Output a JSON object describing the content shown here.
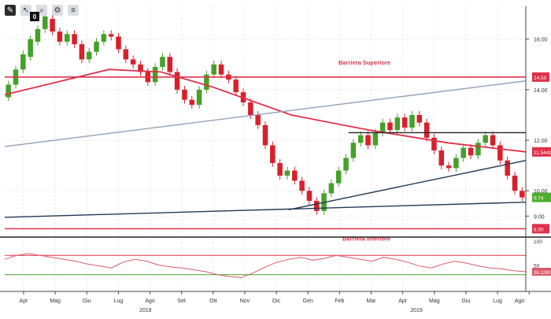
{
  "toolbar": {
    "icons": [
      "pencil-icon",
      "cursor-icon",
      "zoom-icon",
      "settings-icon",
      "list-icon"
    ],
    "badge": "0"
  },
  "chart_data": {
    "type": "candlestick",
    "title": "",
    "xlabel": "",
    "ylabel": "",
    "y_range": [
      8.2,
      17.3
    ],
    "y_ticks": [
      9,
      10,
      12,
      14,
      16
    ],
    "y_tick_labels": [
      "9.00",
      "10.00",
      "12.00",
      "14.00",
      "16.00"
    ],
    "x_month_labels": [
      "Apr",
      "Mag",
      "Giu",
      "Lug",
      "Ago",
      "Set",
      "Ott",
      "Nov",
      "Dic",
      "Gen",
      "Feb",
      "Mar",
      "Apr",
      "Mag",
      "Giu",
      "Lug",
      "Ago"
    ],
    "x_year_labels": [
      "2018",
      "2019"
    ],
    "grid": true,
    "candles": [
      [
        13.7,
        14.2
      ],
      [
        14.2,
        14.8
      ],
      [
        14.8,
        15.4
      ],
      [
        15.3,
        16.0
      ],
      [
        15.9,
        16.4
      ],
      [
        16.4,
        16.9
      ],
      [
        16.8,
        16.3
      ],
      [
        16.3,
        15.9
      ],
      [
        15.9,
        16.2
      ],
      [
        16.2,
        15.8
      ],
      [
        15.8,
        15.2
      ],
      [
        15.2,
        15.5
      ],
      [
        15.5,
        15.9
      ],
      [
        15.9,
        16.2
      ],
      [
        16.2,
        16.1
      ],
      [
        16.1,
        15.6
      ],
      [
        15.6,
        15.2
      ],
      [
        15.2,
        15.0
      ],
      [
        15.0,
        14.7
      ],
      [
        14.7,
        14.3
      ],
      [
        14.3,
        14.9
      ],
      [
        14.9,
        15.3
      ],
      [
        15.3,
        14.7
      ],
      [
        14.7,
        14.0
      ],
      [
        14.0,
        13.6
      ],
      [
        13.6,
        13.4
      ],
      [
        13.4,
        14.0
      ],
      [
        14.0,
        14.6
      ],
      [
        14.6,
        15.0
      ],
      [
        15.0,
        14.6
      ],
      [
        14.6,
        14.4
      ],
      [
        14.4,
        13.9
      ],
      [
        13.9,
        13.5
      ],
      [
        13.5,
        13.0
      ],
      [
        13.0,
        12.6
      ],
      [
        12.6,
        11.8
      ],
      [
        11.8,
        11.1
      ],
      [
        11.1,
        10.6
      ],
      [
        10.6,
        10.8
      ],
      [
        10.8,
        10.4
      ],
      [
        10.4,
        10.0
      ],
      [
        10.0,
        9.6
      ],
      [
        9.6,
        9.2
      ],
      [
        9.2,
        9.9
      ],
      [
        9.9,
        10.3
      ],
      [
        10.3,
        10.8
      ],
      [
        10.8,
        11.3
      ],
      [
        11.3,
        11.9
      ],
      [
        11.9,
        12.2
      ],
      [
        12.2,
        11.8
      ],
      [
        11.8,
        12.3
      ],
      [
        12.3,
        12.7
      ],
      [
        12.7,
        12.4
      ],
      [
        12.4,
        12.9
      ],
      [
        12.9,
        12.5
      ],
      [
        12.5,
        13.0
      ],
      [
        13.0,
        12.7
      ],
      [
        12.7,
        12.1
      ],
      [
        12.1,
        11.6
      ],
      [
        11.6,
        11.0
      ],
      [
        11.0,
        10.9
      ],
      [
        10.9,
        11.3
      ],
      [
        11.3,
        11.7
      ],
      [
        11.7,
        11.4
      ],
      [
        11.4,
        11.9
      ],
      [
        11.9,
        12.2
      ],
      [
        12.2,
        11.8
      ],
      [
        11.8,
        11.2
      ],
      [
        11.2,
        10.6
      ],
      [
        10.6,
        10.0
      ],
      [
        10.0,
        9.74
      ]
    ],
    "series": [
      {
        "kind": "moving_average",
        "x": [
          0,
          0.1,
          0.2,
          0.3,
          0.4,
          0.55,
          0.7,
          0.85,
          1.0
        ],
        "y": [
          13.8,
          14.3,
          14.8,
          14.7,
          14.1,
          13.0,
          12.4,
          11.9,
          11.54
        ],
        "color": "#e0304a"
      },
      {
        "kind": "trendline",
        "x": [
          0,
          1.0
        ],
        "y": [
          11.75,
          14.35
        ],
        "color": "#8fa2b8"
      },
      {
        "kind": "trendline",
        "x": [
          0,
          1.0
        ],
        "y": [
          8.95,
          9.55
        ],
        "color": "#233a56"
      },
      {
        "kind": "trendline",
        "x": [
          0.545,
          1.0
        ],
        "y": [
          9.25,
          11.2
        ],
        "color": "#233a56"
      },
      {
        "kind": "resistance",
        "x": [
          0.66,
          1.0
        ],
        "y": [
          12.3,
          12.3
        ],
        "color": "#222222"
      }
    ],
    "levels": [
      {
        "name": "Barriera Superiore",
        "value": 14.5,
        "label": "14.50",
        "color": "#e0304a"
      },
      {
        "name": "Barriera Inferiore",
        "value": 8.5,
        "label": "8.50",
        "color": "#e0304a"
      }
    ],
    "price_labels": [
      {
        "value": 11.54,
        "label": "11.5449",
        "color": "#e0304a"
      },
      {
        "value": 9.74,
        "label": "9.74",
        "color": "#4cae2a"
      }
    ],
    "oscillator": {
      "type": "rsi",
      "range": [
        0,
        100
      ],
      "tick_labels": [
        "100",
        "50"
      ],
      "upper": 70,
      "lower": 30,
      "last_label": "36.1280",
      "values": [
        62,
        70,
        74,
        70,
        66,
        62,
        58,
        52,
        48,
        44,
        56,
        62,
        58,
        50,
        46,
        44,
        40,
        36,
        30,
        26,
        24,
        34,
        46,
        56,
        62,
        66,
        60,
        64,
        70,
        66,
        62,
        58,
        66,
        62,
        56,
        48,
        44,
        52,
        58,
        54,
        48,
        44,
        42,
        38,
        36
      ]
    },
    "colors": {
      "up": "#45a12a",
      "down": "#d8202c",
      "barrier": "#e0304a",
      "axis": "#444444",
      "grid": "#e6e6e6"
    }
  }
}
